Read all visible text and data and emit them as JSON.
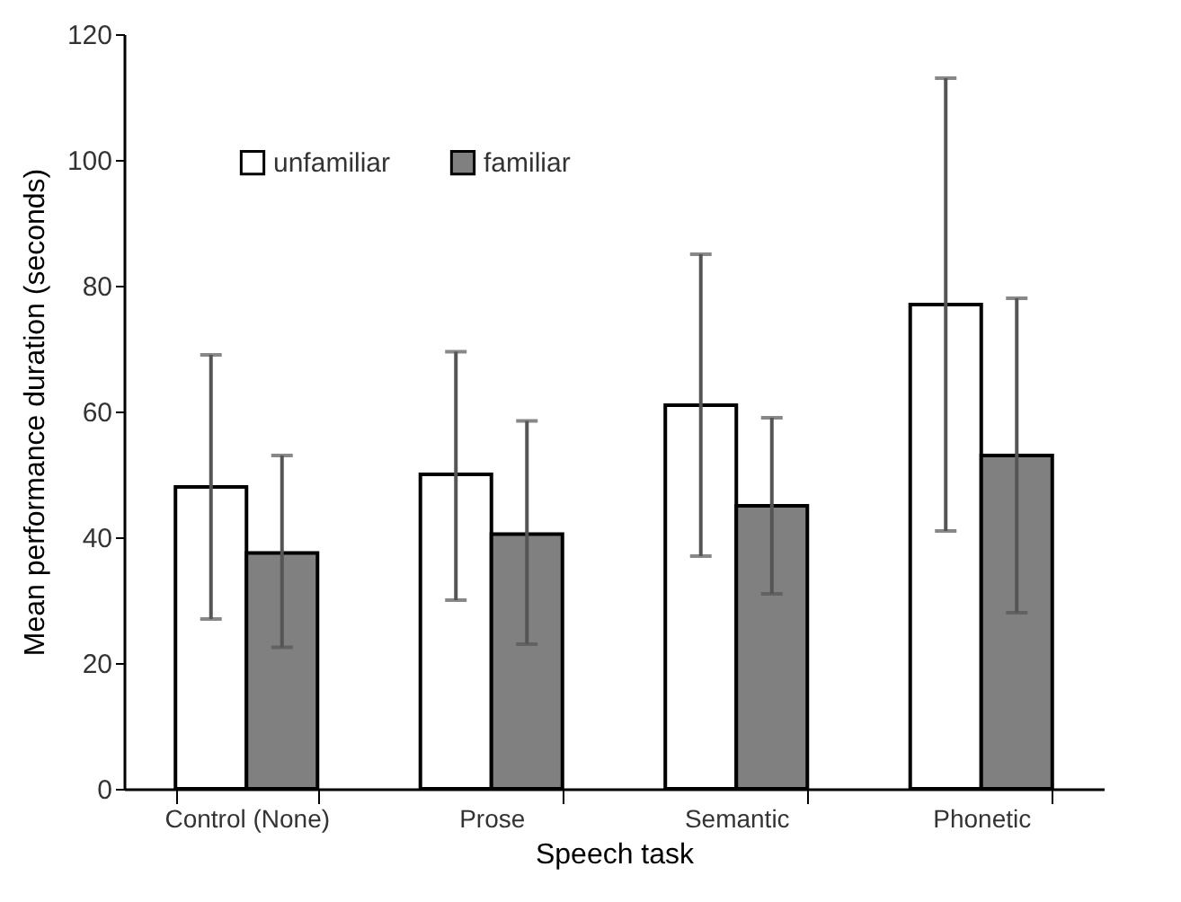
{
  "chart_data": {
    "type": "bar",
    "xlabel": "Speech task",
    "ylabel": "Mean performance duration (seconds)",
    "categories": [
      "Control (None)",
      "Prose",
      "Semantic",
      "Phonetic"
    ],
    "series": [
      {
        "name": "unfamiliar",
        "color": "#ffffff",
        "values": [
          48,
          50,
          61,
          77
        ],
        "errors": [
          [
            27,
            69
          ],
          [
            30,
            69.5
          ],
          [
            37,
            85
          ],
          [
            41,
            113
          ]
        ]
      },
      {
        "name": "familiar",
        "color": "#808080",
        "values": [
          37.5,
          40.5,
          45,
          53
        ],
        "errors": [
          [
            22.5,
            53
          ],
          [
            23,
            58.5
          ],
          [
            31,
            59
          ],
          [
            28,
            78
          ]
        ]
      }
    ],
    "ylim": [
      0,
      120
    ],
    "yticks": [
      0,
      20,
      40,
      60,
      80,
      100,
      120
    ],
    "legend": "top left"
  }
}
